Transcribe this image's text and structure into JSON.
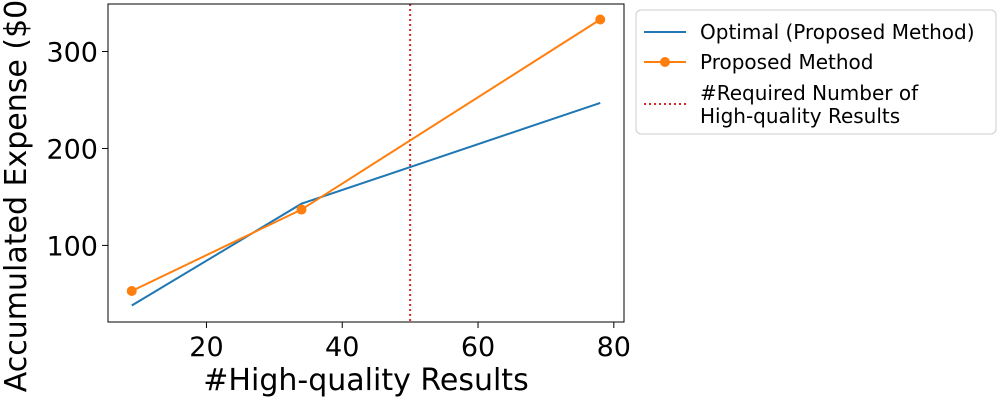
{
  "chart_data": {
    "type": "line",
    "xlabel": "#High-quality Results",
    "ylabel": "Accumulated Expense ($0",
    "xlim": [
      5.5,
      81.5
    ],
    "ylim": [
      21,
      349
    ],
    "xticks": [
      20,
      40,
      60,
      80
    ],
    "yticks": [
      100,
      200,
      300
    ],
    "grid": false,
    "legend_position": "outside right-top",
    "series": [
      {
        "name": "Optimal (Proposed Method)",
        "color": "#1f77b4",
        "marker": "none",
        "x": [
          9,
          34,
          78
        ],
        "y": [
          38,
          143,
          247
        ]
      },
      {
        "name": "Proposed Method",
        "color": "#ff7f0e",
        "marker": "circle",
        "x": [
          9,
          34,
          78
        ],
        "y": [
          53,
          137,
          333
        ]
      }
    ],
    "vlines": [
      {
        "name": "#Required Number of High-quality Results",
        "legend_lines": [
          "#Required Number of",
          "High-quality Results"
        ],
        "x": 50,
        "color": "#d62728",
        "style": "dotted"
      }
    ]
  }
}
